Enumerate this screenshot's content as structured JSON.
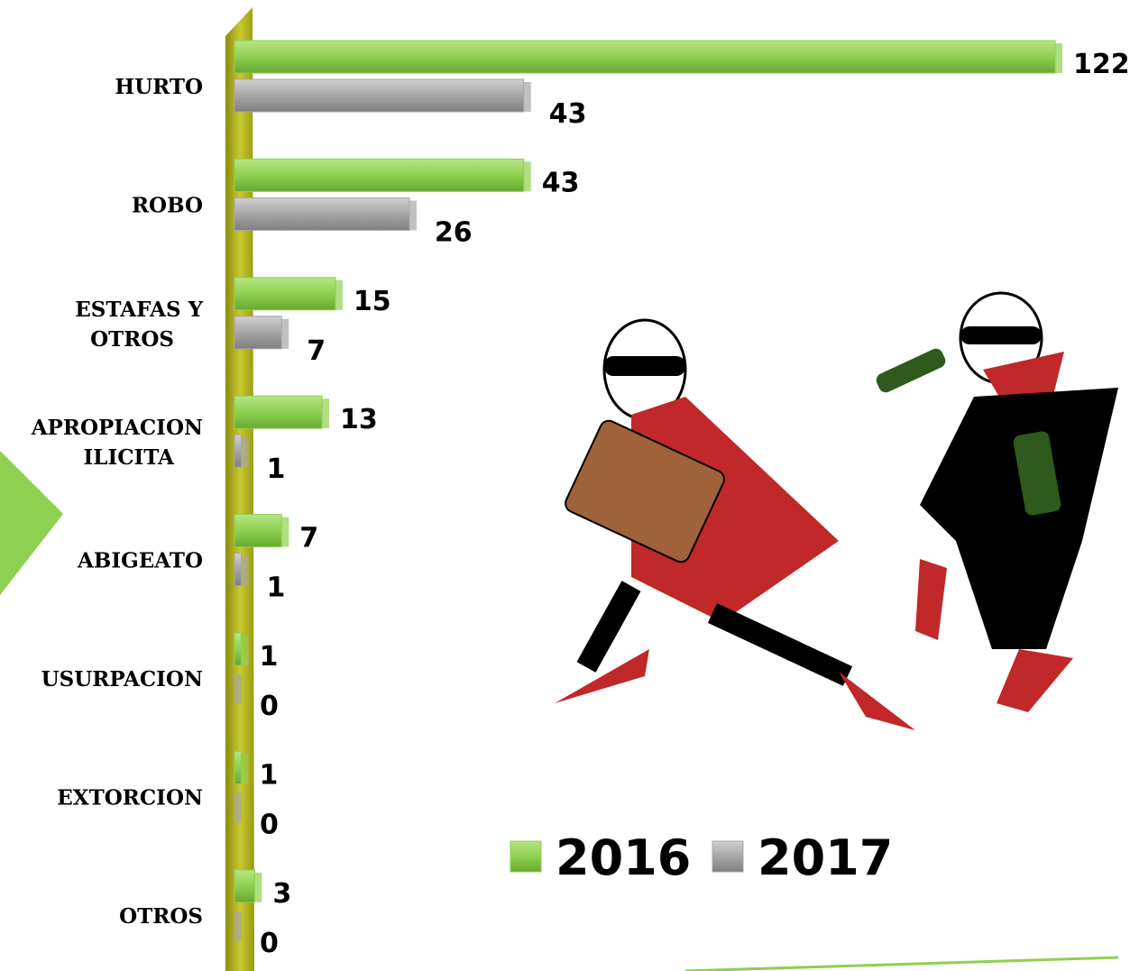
{
  "chart_data": {
    "type": "bar",
    "orientation": "horizontal",
    "categories": [
      "HURTO",
      "ROBO",
      "ESTAFAS Y OTROS",
      "APROPIACION ILICITA",
      "ABIGEATO",
      "USURPACION",
      "EXTORCION",
      "OTROS"
    ],
    "series": [
      {
        "name": "2016",
        "color": "#8ed04f",
        "values": [
          122,
          43,
          15,
          13,
          7,
          1,
          1,
          3
        ]
      },
      {
        "name": "2017",
        "color": "#a6a6a6",
        "values": [
          43,
          26,
          7,
          1,
          1,
          0,
          0,
          0
        ]
      }
    ],
    "legend": "bottom-right"
  }
}
